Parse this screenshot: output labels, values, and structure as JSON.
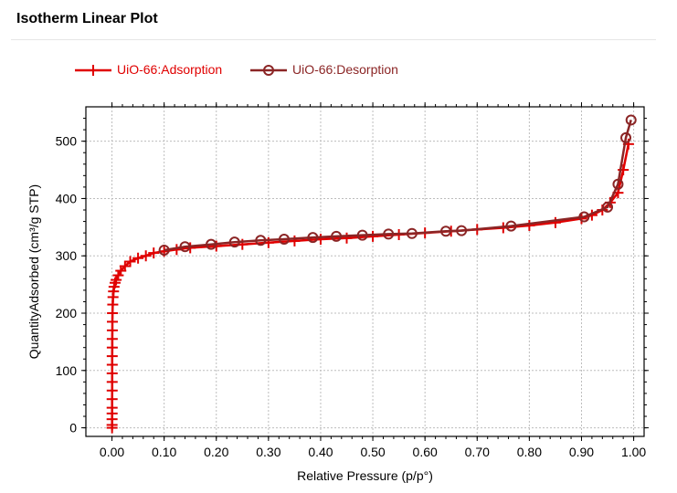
{
  "page": {
    "title": "Isotherm Linear Plot"
  },
  "chart_data": {
    "type": "line",
    "xlabel": "Relative Pressure (p/p°)",
    "ylabel": "QuantityAdsorbed (cm³/g STP)",
    "xlim": [
      -0.05,
      1.02
    ],
    "ylim": [
      -15,
      560
    ],
    "xticks": [
      0.0,
      0.1,
      0.2,
      0.3,
      0.4,
      0.5,
      0.6,
      0.7,
      0.8,
      0.9,
      1.0
    ],
    "xtick_labels": [
      "0.00",
      "0.10",
      "0.20",
      "0.30",
      "0.40",
      "0.50",
      "0.60",
      "0.70",
      "0.80",
      "0.90",
      "1.00"
    ],
    "yticks": [
      0,
      100,
      200,
      300,
      400,
      500
    ],
    "ytick_labels": [
      "0",
      "100",
      "200",
      "300",
      "400",
      "500"
    ],
    "grid": true,
    "legend_position": "top-left",
    "series": [
      {
        "name": "UiO-66:Adsorption",
        "color": "#e00000",
        "marker": "plus",
        "x": [
          0.0002,
          0.0002,
          0.0002,
          0.0003,
          0.0003,
          0.0003,
          0.0004,
          0.0004,
          0.0004,
          0.0005,
          0.0005,
          0.0006,
          0.0006,
          0.0007,
          0.0008,
          0.001,
          0.0015,
          0.002,
          0.003,
          0.004,
          0.006,
          0.008,
          0.012,
          0.017,
          0.025,
          0.035,
          0.05,
          0.065,
          0.08,
          0.1,
          0.124,
          0.15,
          0.2,
          0.25,
          0.3,
          0.35,
          0.4,
          0.45,
          0.5,
          0.55,
          0.6,
          0.65,
          0.7,
          0.75,
          0.8,
          0.85,
          0.9,
          0.92,
          0.94,
          0.955,
          0.97,
          0.98,
          0.99
        ],
        "y": [
          0,
          5,
          15,
          25,
          35,
          50,
          65,
          80,
          95,
          110,
          125,
          140,
          155,
          170,
          185,
          200,
          215,
          228,
          238,
          246,
          253,
          258,
          266,
          274,
          282,
          290,
          296,
          300,
          305,
          308,
          311,
          314,
          317,
          320,
          323,
          326,
          329,
          331,
          334,
          337,
          340,
          343,
          346,
          349,
          353,
          358,
          365,
          371,
          380,
          393,
          410,
          450,
          495
        ]
      },
      {
        "name": "UiO-66:Desorption",
        "color": "#8b2525",
        "marker": "circle",
        "x": [
          0.995,
          0.985,
          0.97,
          0.95,
          0.905,
          0.765,
          0.67,
          0.64,
          0.575,
          0.53,
          0.48,
          0.43,
          0.385,
          0.33,
          0.285,
          0.235,
          0.19,
          0.14,
          0.1
        ],
        "y": [
          537,
          506,
          425,
          385,
          368,
          352,
          344,
          343,
          339,
          338,
          336,
          334,
          332,
          329,
          327,
          324,
          320,
          316,
          310
        ]
      }
    ]
  }
}
